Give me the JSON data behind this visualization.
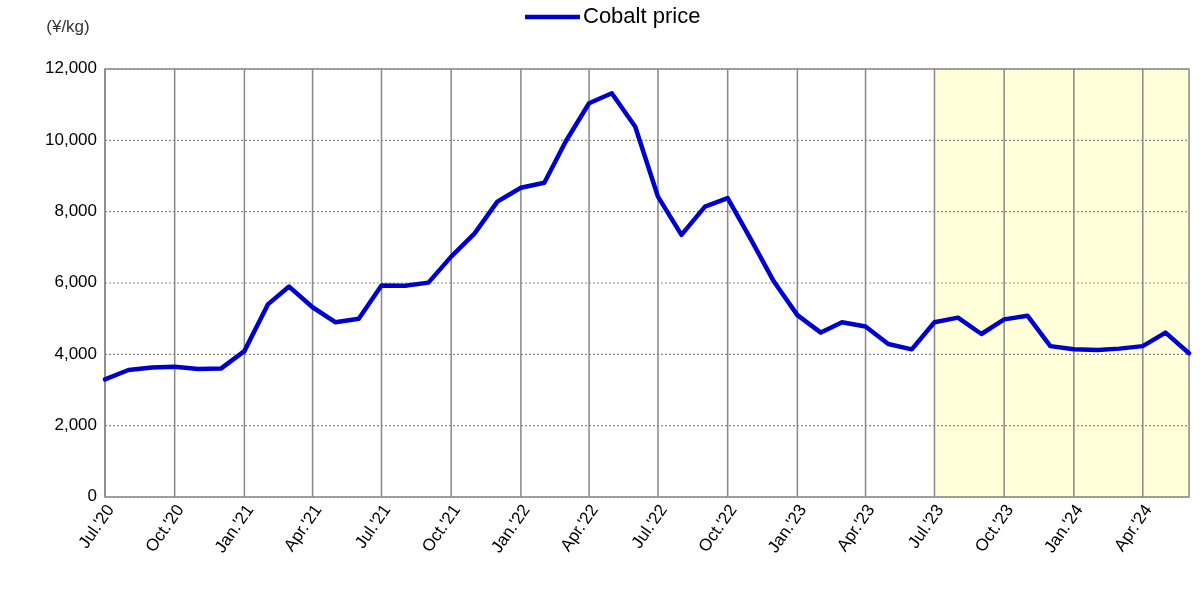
{
  "chart_data": {
    "type": "line",
    "ylabel": "(¥/kg)",
    "legend": "top",
    "grid": true,
    "x": [
      "2020-07",
      "2020-08",
      "2020-09",
      "2020-10",
      "2020-11",
      "2020-12",
      "2021-01",
      "2021-02",
      "2021-03",
      "2021-04",
      "2021-05",
      "2021-06",
      "2021-07",
      "2021-08",
      "2021-09",
      "2021-10",
      "2021-11",
      "2021-12",
      "2022-01",
      "2022-02",
      "2022-03",
      "2022-04",
      "2022-05",
      "2022-06",
      "2022-07",
      "2022-08",
      "2022-09",
      "2022-10",
      "2022-11",
      "2022-12",
      "2023-01",
      "2023-02",
      "2023-03",
      "2023-04",
      "2023-05",
      "2023-06",
      "2023-07",
      "2023-08",
      "2023-09",
      "2023-10",
      "2023-11",
      "2023-12",
      "2024-01",
      "2024-02",
      "2024-03",
      "2024-04",
      "2024-05",
      "2024-06"
    ],
    "series": [
      {
        "name": "Cobalt price",
        "color": "#0000cc",
        "values": [
          3300,
          3560,
          3630,
          3650,
          3590,
          3600,
          4090,
          5400,
          5900,
          5320,
          4900,
          5000,
          5930,
          5920,
          6010,
          6740,
          7390,
          8280,
          8670,
          8810,
          9960,
          11040,
          11320,
          10380,
          8420,
          7350,
          8140,
          8380,
          7210,
          6040,
          5100,
          4610,
          4900,
          4780,
          4290,
          4140,
          4900,
          5030,
          4570,
          4980,
          5080,
          4230,
          4140,
          4120,
          4160,
          4230,
          4610,
          4030
        ]
      }
    ],
    "xlim": [
      "2020-07",
      "2024-06"
    ],
    "xticks": [
      {
        "value": "2020-07",
        "label": "Jul.'20"
      },
      {
        "value": "2020-10",
        "label": "Oct.'20"
      },
      {
        "value": "2021-01",
        "label": "Jan.'21"
      },
      {
        "value": "2021-04",
        "label": "Apr.'21"
      },
      {
        "value": "2021-07",
        "label": "Jul.'21"
      },
      {
        "value": "2021-10",
        "label": "Oct.'21"
      },
      {
        "value": "2022-01",
        "label": "Jan.'22"
      },
      {
        "value": "2022-04",
        "label": "Apr.'22"
      },
      {
        "value": "2022-07",
        "label": "Jul.'22"
      },
      {
        "value": "2022-10",
        "label": "Oct.'22"
      },
      {
        "value": "2023-01",
        "label": "Jan.'23"
      },
      {
        "value": "2023-04",
        "label": "Apr.'23"
      },
      {
        "value": "2023-07",
        "label": "Jul.'23"
      },
      {
        "value": "2023-10",
        "label": "Oct.'23"
      },
      {
        "value": "2024-01",
        "label": "Jan.'24"
      },
      {
        "value": "2024-04",
        "label": "Apr.'24"
      }
    ],
    "ylim": [
      0,
      12000
    ],
    "yticks": [
      {
        "value": 0,
        "label": "0"
      },
      {
        "value": 2000,
        "label": "2,000"
      },
      {
        "value": 4000,
        "label": "4,000"
      },
      {
        "value": 6000,
        "label": "6,000"
      },
      {
        "value": 8000,
        "label": "8,000"
      },
      {
        "value": 10000,
        "label": "10,000"
      },
      {
        "value": 12000,
        "label": "12,000"
      }
    ],
    "bands": [
      {
        "axis": "x",
        "from": "2023-07",
        "to": "2024-06",
        "color": "#ffffd9"
      }
    ]
  }
}
